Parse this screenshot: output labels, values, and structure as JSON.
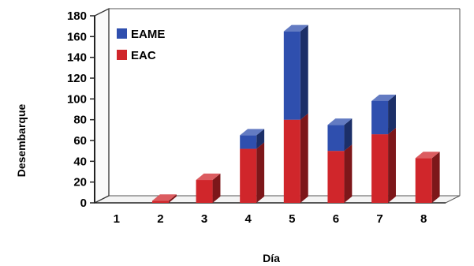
{
  "chart_data": {
    "type": "bar",
    "stacked": true,
    "three_d": true,
    "categories": [
      "1",
      "2",
      "3",
      "4",
      "5",
      "6",
      "7",
      "8"
    ],
    "series": [
      {
        "name": "EAC",
        "values": [
          0,
          2,
          22,
          52,
          80,
          50,
          66,
          43
        ]
      },
      {
        "name": "EAME",
        "values": [
          0,
          0,
          0,
          13,
          85,
          25,
          32,
          0
        ]
      }
    ],
    "title": "",
    "xlabel": "Día",
    "ylabel": "Desembarque",
    "ylim": [
      0,
      180
    ],
    "yticks": [
      0,
      20,
      40,
      60,
      80,
      100,
      120,
      140,
      160,
      180
    ],
    "grid": false,
    "legend_position": "top-left",
    "colors": {
      "EAC": "#d0262b",
      "EAME": "#2f4fae"
    }
  }
}
